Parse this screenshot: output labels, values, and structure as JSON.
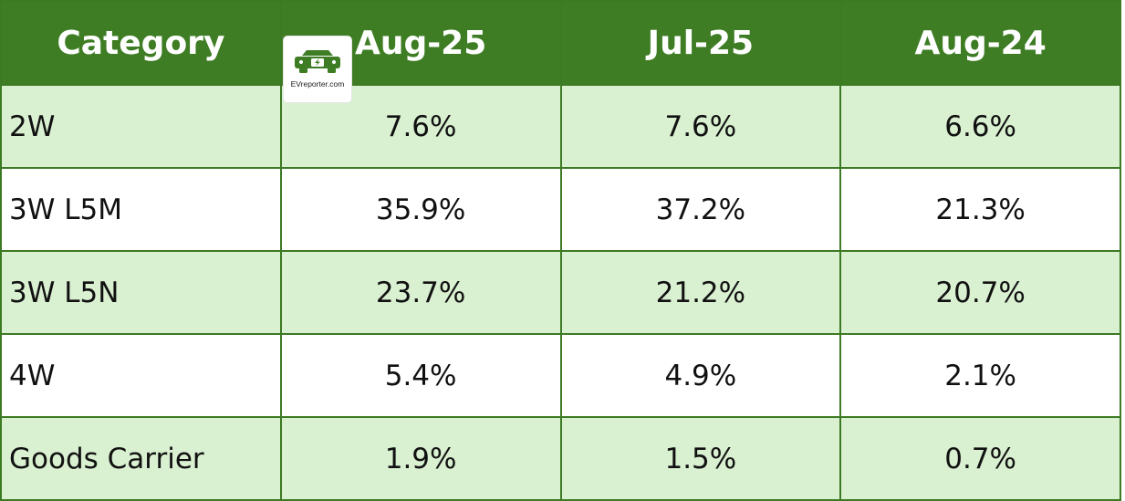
{
  "table": {
    "headers": [
      "Category",
      "Aug-25",
      "Jul-25",
      "Aug-24"
    ],
    "rows": [
      {
        "category": "2W",
        "values": [
          "7.6%",
          "7.6%",
          "6.6%"
        ]
      },
      {
        "category": "3W L5M",
        "values": [
          "35.9%",
          "37.2%",
          "21.3%"
        ]
      },
      {
        "category": "3W L5N",
        "values": [
          "23.7%",
          "21.2%",
          "20.7%"
        ]
      },
      {
        "category": "4W",
        "values": [
          "5.4%",
          "4.9%",
          "2.1%"
        ]
      },
      {
        "category": "Goods Carrier",
        "values": [
          "1.9%",
          "1.5%",
          "0.7%"
        ]
      }
    ]
  },
  "logo": {
    "text": "EVreporter.com",
    "icon": "ev-car-bolt-icon",
    "color": "#3e7d24"
  },
  "colors": {
    "header_bg": "#3e7d24",
    "header_text": "#ffffff",
    "row_alt": "#d9f0d1",
    "border": "#3d7a24"
  }
}
